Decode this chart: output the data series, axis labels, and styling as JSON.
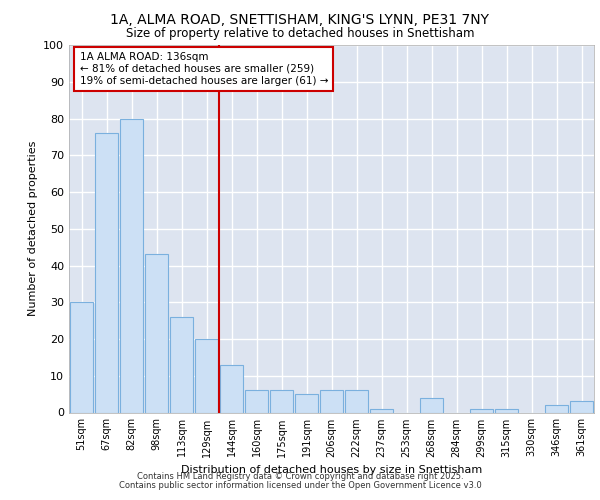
{
  "title_line1": "1A, ALMA ROAD, SNETTISHAM, KING'S LYNN, PE31 7NY",
  "title_line2": "Size of property relative to detached houses in Snettisham",
  "xlabel": "Distribution of detached houses by size in Snettisham",
  "ylabel": "Number of detached properties",
  "categories": [
    "51sqm",
    "67sqm",
    "82sqm",
    "98sqm",
    "113sqm",
    "129sqm",
    "144sqm",
    "160sqm",
    "175sqm",
    "191sqm",
    "206sqm",
    "222sqm",
    "237sqm",
    "253sqm",
    "268sqm",
    "284sqm",
    "299sqm",
    "315sqm",
    "330sqm",
    "346sqm",
    "361sqm"
  ],
  "values": [
    30,
    76,
    80,
    43,
    26,
    20,
    13,
    6,
    6,
    5,
    6,
    6,
    1,
    0,
    4,
    0,
    1,
    1,
    0,
    2,
    3
  ],
  "bar_color": "#cce0f5",
  "bar_edge_color": "#7ab0de",
  "plot_bg_color": "#dde4f0",
  "fig_bg_color": "#ffffff",
  "grid_color": "#ffffff",
  "red_line_x": 6.0,
  "annotation_text_line1": "1A ALMA ROAD: 136sqm",
  "annotation_text_line2": "← 81% of detached houses are smaller (259)",
  "annotation_text_line3": "19% of semi-detached houses are larger (61) →",
  "annotation_box_color": "#ffffff",
  "annotation_box_edge": "#cc0000",
  "footer_line1": "Contains HM Land Registry data © Crown copyright and database right 2025.",
  "footer_line2": "Contains public sector information licensed under the Open Government Licence v3.0",
  "ylim": [
    0,
    100
  ],
  "yticks": [
    0,
    10,
    20,
    30,
    40,
    50,
    60,
    70,
    80,
    90,
    100
  ]
}
